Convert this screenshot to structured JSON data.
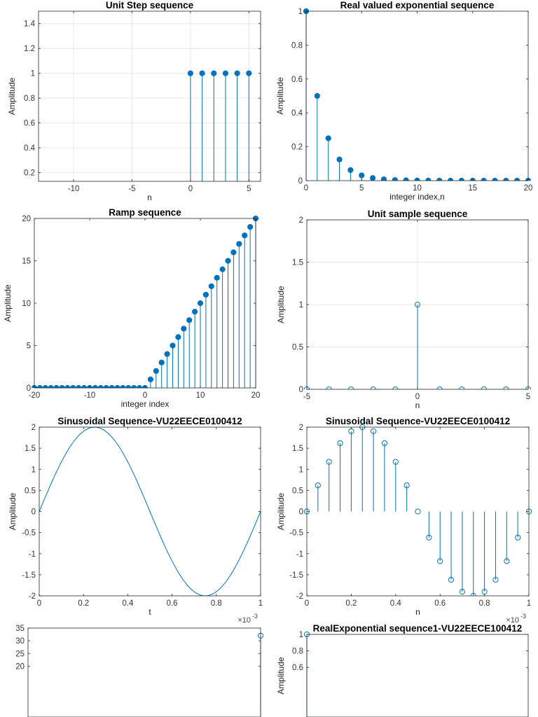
{
  "colors": {
    "series": "#0072BD",
    "grid": "#e6e6e6",
    "axis": "#262626"
  },
  "chart_data": [
    {
      "type": "stem",
      "marker": "filled",
      "title": "Unit Step sequence",
      "xlabel": "n",
      "ylabel": "Amplitude",
      "xlim": [
        -13,
        6
      ],
      "ylim": [
        0.13,
        1.5
      ],
      "xticks": [
        -10,
        -5,
        0,
        5
      ],
      "yticks": [
        0.2,
        0.4,
        0.6,
        0.8,
        1,
        1.2,
        1.4
      ],
      "ytick_labels": [
        "0.2",
        "0.4",
        "0.6",
        "0.8",
        "1",
        "1.2",
        "1.4"
      ],
      "grid": true,
      "x": [
        0,
        1,
        2,
        3,
        4,
        5
      ],
      "y": [
        1,
        1,
        1,
        1,
        1,
        1
      ]
    },
    {
      "type": "stem",
      "marker": "filled",
      "title": "Real valued exponential sequence",
      "xlabel": "integer index,n",
      "ylabel": "Amplitude",
      "xlim": [
        0,
        20
      ],
      "ylim": [
        0,
        1
      ],
      "xticks": [
        0,
        5,
        10,
        15,
        20
      ],
      "yticks": [
        0,
        0.2,
        0.4,
        0.6,
        0.8,
        1
      ],
      "ytick_labels": [
        "0",
        "0.2",
        "0.4",
        "0.6",
        "0.8",
        "1"
      ],
      "grid": false,
      "x": [
        0,
        1,
        2,
        3,
        4,
        5,
        6,
        7,
        8,
        9,
        10,
        11,
        12,
        13,
        14,
        15,
        16,
        17,
        18,
        19,
        20
      ],
      "y": [
        1,
        0.5,
        0.25,
        0.125,
        0.0625,
        0.0313,
        0.0156,
        0.0078,
        0.0039,
        0.002,
        0.001,
        0.0005,
        0.0002,
        0.0001,
        0.0001,
        0,
        0,
        0,
        0,
        0,
        0
      ]
    },
    {
      "type": "stem",
      "marker": "filled",
      "title": "Ramp sequence",
      "xlabel": "integer index",
      "ylabel": "Amplitude",
      "xlim": [
        -20,
        20
      ],
      "ylim": [
        0,
        20
      ],
      "xticks": [
        -20,
        -10,
        0,
        10,
        20
      ],
      "yticks": [
        0,
        5,
        10,
        15,
        20
      ],
      "ytick_labels": [
        "0",
        "5",
        "10",
        "15",
        "20"
      ],
      "grid": false,
      "x": [
        -20,
        -19,
        -18,
        -17,
        -16,
        -15,
        -14,
        -13,
        -12,
        -11,
        -10,
        -9,
        -8,
        -7,
        -6,
        -5,
        -4,
        -3,
        -2,
        -1,
        0,
        1,
        2,
        3,
        4,
        5,
        6,
        7,
        8,
        9,
        10,
        11,
        12,
        13,
        14,
        15,
        16,
        17,
        18,
        19,
        20
      ],
      "y": [
        0,
        0,
        0,
        0,
        0,
        0,
        0,
        0,
        0,
        0,
        0,
        0,
        0,
        0,
        0,
        0,
        0,
        0,
        0,
        0,
        0,
        1,
        2,
        3,
        4,
        5,
        6,
        7,
        8,
        9,
        10,
        11,
        12,
        13,
        14,
        15,
        16,
        17,
        18,
        19,
        20
      ]
    },
    {
      "type": "stem",
      "marker": "open",
      "title": "Unit sample sequence",
      "xlabel": "n",
      "ylabel": "Amplitude",
      "xlim": [
        -5,
        5
      ],
      "ylim": [
        0,
        2
      ],
      "xticks": [
        -5,
        0,
        5
      ],
      "yticks": [
        0,
        0.5,
        1,
        1.5,
        2
      ],
      "ytick_labels": [
        "0",
        "0.5",
        "1",
        "1.5",
        "2"
      ],
      "grid": true,
      "x": [
        -5,
        -4,
        -3,
        -2,
        -1,
        0,
        1,
        2,
        3,
        4,
        5
      ],
      "y": [
        0,
        0,
        0,
        0,
        0,
        1,
        0,
        0,
        0,
        0,
        0
      ]
    },
    {
      "type": "line",
      "title": "Sinusoidal Sequence-VU22EECE0100412",
      "xlabel": "t",
      "ylabel": "Amplitude",
      "xlim": [
        0,
        1
      ],
      "ylim": [
        -2,
        2
      ],
      "x_exponent": "×10",
      "x_exponent_power": "-3",
      "xticks": [
        0,
        0.2,
        0.4,
        0.6,
        0.8,
        1
      ],
      "yticks": [
        -2,
        -1.5,
        -1,
        -0.5,
        0,
        0.5,
        1,
        1.5,
        2
      ],
      "ytick_labels": [
        "-2",
        "-1.5",
        "-1",
        "-0.5",
        "0",
        "0.5",
        "1",
        "1.5",
        "2"
      ],
      "grid": false,
      "function": "2*sin(2*pi*1000*t)",
      "samples": 101
    },
    {
      "type": "stem",
      "marker": "open",
      "title": "Sinusoidal Sequence-VU22EECE0100412",
      "xlabel": "n",
      "ylabel": "Amplitude",
      "xlim": [
        0,
        1
      ],
      "ylim": [
        -2,
        2
      ],
      "x_exponent": "×10",
      "x_exponent_power": "-3",
      "xticks": [
        0,
        0.2,
        0.4,
        0.6,
        0.8,
        1
      ],
      "yticks": [
        -2,
        -1.5,
        -1,
        -0.5,
        0,
        0.5,
        1,
        1.5,
        2
      ],
      "ytick_labels": [
        "-2",
        "-1.5",
        "-1",
        "-0.5",
        "0",
        "0.5",
        "1",
        "1.5",
        "2"
      ],
      "grid": false,
      "x": [
        0,
        0.05,
        0.1,
        0.15,
        0.2,
        0.25,
        0.3,
        0.35,
        0.4,
        0.45,
        0.5,
        0.55,
        0.6,
        0.65,
        0.7,
        0.75,
        0.8,
        0.85,
        0.9,
        0.95,
        1
      ],
      "y": [
        0,
        0.618,
        1.176,
        1.618,
        1.902,
        2,
        1.902,
        1.618,
        1.176,
        0.618,
        0,
        -0.618,
        -1.176,
        -1.618,
        -1.902,
        -2,
        -1.902,
        -1.618,
        -1.176,
        -0.618,
        0
      ]
    },
    {
      "type": "stem",
      "marker": "open",
      "title": "",
      "xlabel": "",
      "ylabel": "",
      "xlim": [
        0,
        1
      ],
      "ylim": [
        0,
        35
      ],
      "xticks": [],
      "yticks": [
        20,
        25,
        30,
        35
      ],
      "ytick_labels": [
        "20",
        "25",
        "30",
        "35"
      ],
      "grid": false,
      "x": [
        1
      ],
      "y": [
        32
      ]
    },
    {
      "type": "stem",
      "marker": "open",
      "title": "RealExponential sequence1-VU22EECE100412",
      "xlabel": "",
      "ylabel": "Amplitude",
      "xlim": [
        0,
        1
      ],
      "ylim": [
        0,
        1
      ],
      "xticks": [],
      "yticks": [
        0.6,
        0.8,
        1
      ],
      "ytick_labels": [
        "0.6",
        "0.8",
        "1"
      ],
      "grid": false,
      "x": [
        0
      ],
      "y": [
        1
      ]
    }
  ]
}
